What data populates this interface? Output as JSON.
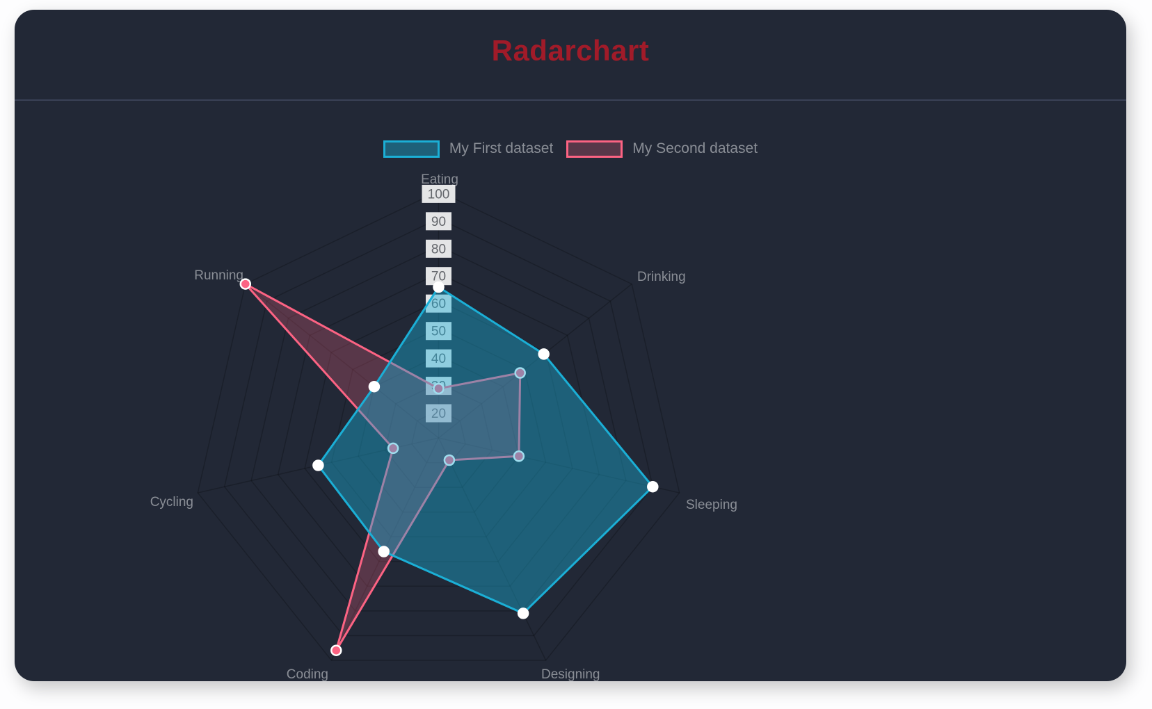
{
  "window": {
    "title": "Radarchart"
  },
  "colors": {
    "page_bg": "#fdfdfe",
    "panel_bg": "#222836",
    "title": "#a11b29",
    "separator": "#3a4156",
    "text_muted": "#8a8e96",
    "tick_text": "#63666b",
    "tick_backdrop": "rgba(255,255,255,0.88)",
    "grid_line": "rgba(0,0,0,0.22)",
    "dataset1_border": "#1bafd6",
    "dataset1_fill": "rgba(27,175,214,0.42)",
    "dataset1_point": "#ffffff",
    "dataset1_point_border": "#ffffff",
    "dataset2_border": "#fc6383",
    "dataset2_fill": "rgba(252,99,131,0.25)",
    "dataset2_point": "#fc6383",
    "dataset2_point_border": "#ffffff"
  },
  "chart_data": {
    "type": "radar",
    "title": "Radarchart",
    "categories": [
      "Eating",
      "Drinking",
      "Sleeping",
      "Designing",
      "Coding",
      "Cycling",
      "Running"
    ],
    "series": [
      {
        "name": "My First dataset",
        "values": [
          65,
          59,
          90,
          81,
          56,
          55,
          40
        ]
      },
      {
        "name": "My Second dataset",
        "values": [
          28,
          48,
          40,
          19,
          96,
          27,
          100
        ]
      }
    ],
    "scale": {
      "min": 10,
      "max": 100,
      "step": 10,
      "visible_tick_labels": [
        20,
        30,
        40,
        50,
        60,
        70,
        80,
        90,
        100
      ]
    },
    "legend_position": "top",
    "axis_start": "top",
    "direction": "clockwise",
    "grid": "on"
  }
}
